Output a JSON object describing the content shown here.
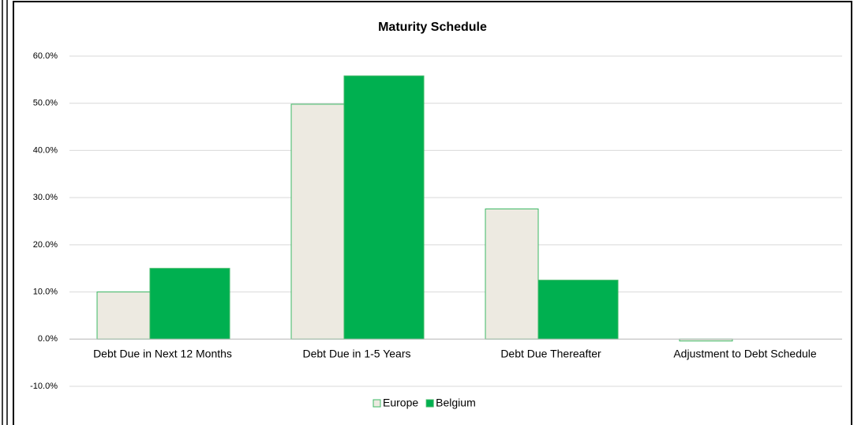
{
  "chart_data": {
    "type": "bar",
    "title": "Maturity Schedule",
    "categories": [
      "Debt Due in Next 12 Months",
      "Debt Due in 1-5 Years",
      "Debt Due Thereafter",
      "Adjustment to Debt Schedule"
    ],
    "series": [
      {
        "name": "Europe",
        "color": "#edeae1",
        "values": [
          10.0,
          49.8,
          27.6,
          -0.4
        ]
      },
      {
        "name": "Belgium",
        "color": "#00b050",
        "values": [
          15.0,
          55.8,
          12.5,
          0
        ]
      }
    ],
    "ylim": [
      -10,
      60
    ],
    "yticks": [
      {
        "value": -10,
        "label": "-10.0%"
      },
      {
        "value": 0,
        "label": "0.0%"
      },
      {
        "value": 10,
        "label": "10.0%"
      },
      {
        "value": 20,
        "label": "20.0%"
      },
      {
        "value": 30,
        "label": "30.0%"
      },
      {
        "value": 40,
        "label": "40.0%"
      },
      {
        "value": 50,
        "label": "50.0%"
      },
      {
        "value": 60,
        "label": "60.0%"
      }
    ],
    "grid": true,
    "legend": "bottom"
  }
}
